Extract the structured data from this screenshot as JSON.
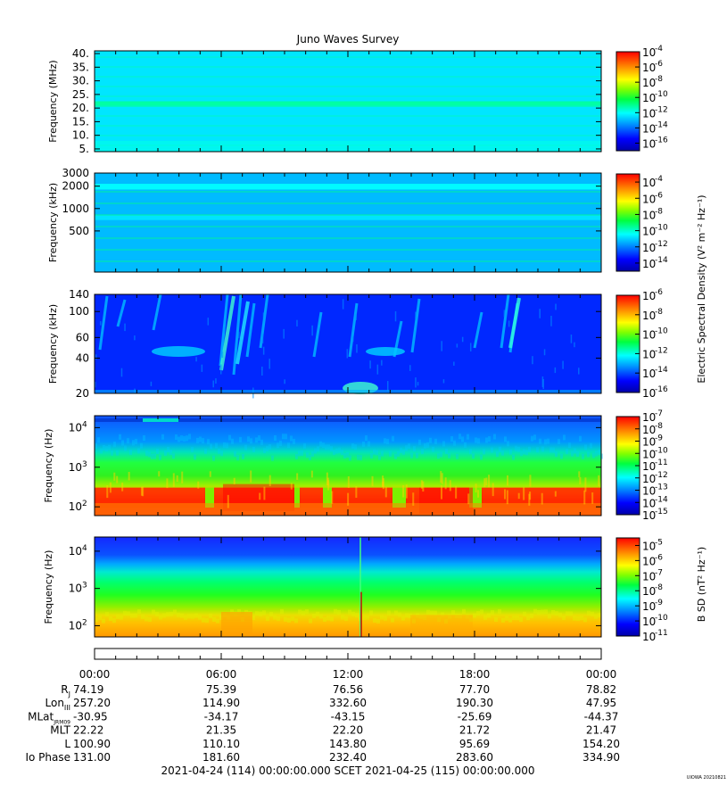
{
  "chart_data": {
    "type": "heatmap",
    "title": "Juno Waves Survey",
    "panels": [
      {
        "id": "p1",
        "ylabel": "Frequency (MHz)",
        "y_scale": "linear",
        "ylim": [
          4.0,
          41.0
        ],
        "y_ticks": [
          {
            "v": 40,
            "l": "40."
          },
          {
            "v": 35,
            "l": "35."
          },
          {
            "v": 30,
            "l": "30."
          },
          {
            "v": 25,
            "l": "25."
          },
          {
            "v": 20,
            "l": "20."
          },
          {
            "v": 15,
            "l": "15."
          },
          {
            "v": 10,
            "l": "10."
          },
          {
            "v": 5,
            "l": "5."
          }
        ],
        "colorbar": {
          "min": -17,
          "max": -4,
          "labels": [
            -4,
            -6,
            -8,
            -10,
            -12,
            -14,
            -16
          ]
        },
        "background_level": -12.4,
        "bands": [
          {
            "from": 20.5,
            "to": 22.5,
            "level": -11.2
          }
        ]
      },
      {
        "id": "p2",
        "ylabel": "Frequency (kHz)",
        "y_scale": "log",
        "ylim": [
          140,
          3000
        ],
        "y_ticks": [
          {
            "v": 3000,
            "l": "3000"
          },
          {
            "v": 2000,
            "l": "2000"
          },
          {
            "v": 1000,
            "l": "1000"
          },
          {
            "v": 500,
            "l": "500"
          }
        ],
        "colorbar": {
          "min": -15,
          "max": -3,
          "labels": [
            -4,
            -6,
            -8,
            -10,
            -12,
            -14
          ]
        },
        "background_level": -11.3,
        "bands": [
          {
            "from": 1800,
            "to": 2150,
            "level": -10.5
          },
          {
            "from": 700,
            "to": 820,
            "level": -10.8
          }
        ]
      },
      {
        "id": "p3",
        "ylabel": "Frequency (kHz)",
        "y_scale": "log",
        "ylim": [
          20,
          140
        ],
        "y_ticks": [
          {
            "v": 140,
            "l": "140"
          },
          {
            "v": 100,
            "l": "100"
          },
          {
            "v": 60,
            "l": "60"
          },
          {
            "v": 40,
            "l": "40"
          },
          {
            "v": 20,
            "l": "20"
          }
        ],
        "colorbar": {
          "min": -16,
          "max": -6,
          "labels": [
            -6,
            -8,
            -10,
            -12,
            -14,
            -16
          ]
        },
        "background_level": -14.4
      },
      {
        "id": "p4",
        "ylabel": "Frequency (Hz)",
        "y_scale": "log",
        "ylim": [
          60,
          20000
        ],
        "y_ticks": [
          {
            "v": 10000,
            "l": "10",
            "e": "4"
          },
          {
            "v": 1000,
            "l": "10",
            "e": "3"
          },
          {
            "v": 100,
            "l": "10",
            "e": "2"
          }
        ],
        "colorbar": {
          "min": -15,
          "max": -7,
          "labels": [
            -7,
            -8,
            -9,
            -10,
            -11,
            -12,
            -13,
            -14,
            -15
          ]
        }
      },
      {
        "id": "p5",
        "ylabel": "Frequency (Hz)",
        "y_scale": "log",
        "ylim": [
          50,
          24000
        ],
        "y_ticks": [
          {
            "v": 10000,
            "l": "10",
            "e": "4"
          },
          {
            "v": 1000,
            "l": "10",
            "e": "3"
          },
          {
            "v": 100,
            "l": "10",
            "e": "2"
          }
        ],
        "colorbar": {
          "min": -11,
          "max": -4.5,
          "labels": [
            -5,
            -6,
            -7,
            -8,
            -9,
            -10,
            -11
          ]
        }
      }
    ],
    "colorbar_labels": {
      "electric": "Electric Spectral Density (V² m⁻² Hz⁻¹)",
      "magnetic": "B SD (nT² Hz⁻¹)"
    },
    "x_axis": {
      "tick_labels": [
        "00:00",
        "06:00",
        "12:00",
        "18:00",
        "00:00"
      ]
    },
    "ephemeris": {
      "rows": [
        {
          "label": "R",
          "sub": "J",
          "values": [
            "74.19",
            "75.39",
            "76.56",
            "77.70",
            "78.82"
          ]
        },
        {
          "label": "Lon",
          "sub": "III",
          "values": [
            "257.20",
            "114.90",
            "332.60",
            "190.30",
            "47.95"
          ]
        },
        {
          "label": "MLat",
          "sub": "JRM09",
          "values": [
            "-30.95",
            "-34.17",
            "-43.15",
            "-25.69",
            "-44.37"
          ]
        },
        {
          "label": "MLT",
          "sub": "",
          "values": [
            "22.22",
            "21.35",
            "22.20",
            "21.72",
            "21.47"
          ]
        },
        {
          "label": "L",
          "sub": "",
          "values": [
            "100.90",
            "110.10",
            "143.80",
            "95.69",
            "154.20"
          ]
        },
        {
          "label": "Io Phase",
          "sub": "",
          "values": [
            "131.00",
            "181.60",
            "232.40",
            "283.60",
            "334.90"
          ]
        }
      ]
    },
    "footer": "2021-04-24 (114) 00:00:00.000     SCET     2021-04-25 (115) 00:00:00.000",
    "credit": "UIOWA 20210821"
  }
}
